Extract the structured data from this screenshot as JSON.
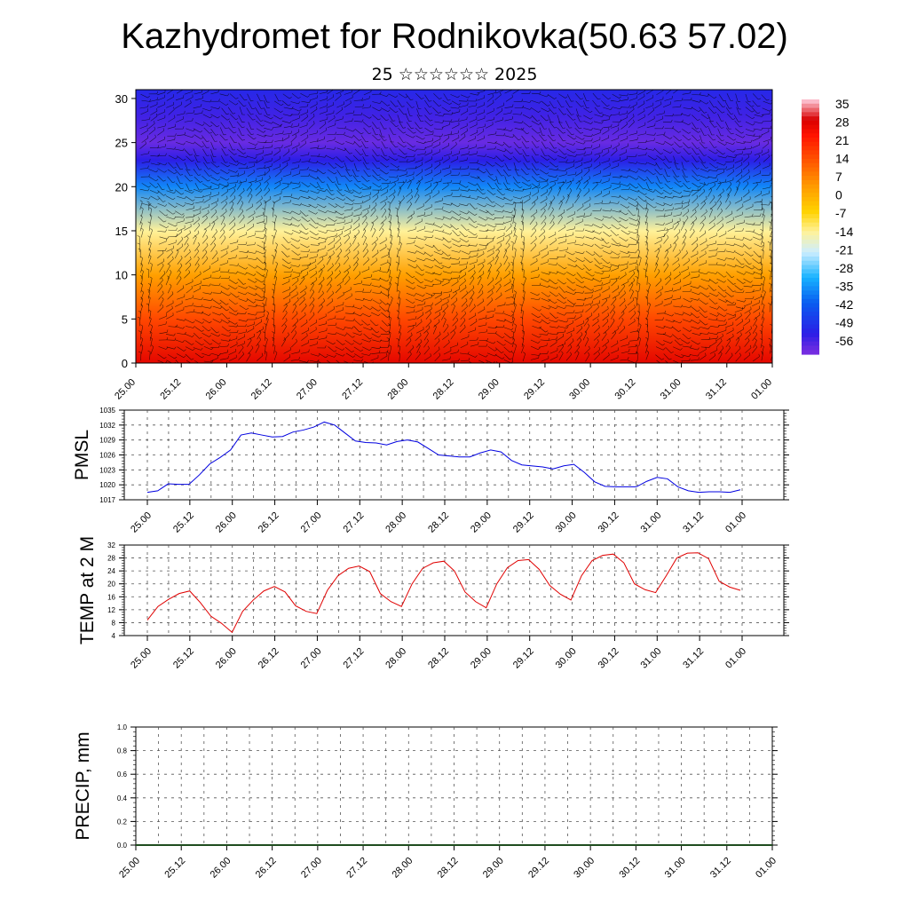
{
  "page": {
    "title": "Kazhydromet for Rodnikovka(50.63 57.02)",
    "subtitle": "25 ☆☆☆☆☆☆ 2025"
  },
  "colors": {
    "pmsl_line": "#0000e0",
    "temp_line": "#e00000",
    "precip_line": "#1f4d1f",
    "grid": "#555555",
    "wind_barbs": "#000000",
    "colorbar": [
      "#ff6bb0",
      "#ff0000",
      "#ff5a00",
      "#ff9a00",
      "#ffd900",
      "#fff59a",
      "#cfefff",
      "#22c3ff",
      "#0070ff",
      "#1b1fe6",
      "#7a2be6"
    ]
  },
  "chart_data": [
    {
      "type": "heatmap",
      "title": "",
      "x_tick_labels": [
        "25.00",
        "25.12",
        "26.00",
        "26.12",
        "27.00",
        "27.12",
        "28.00",
        "28.12",
        "29.00",
        "29.12",
        "30.00",
        "30.12",
        "31.00",
        "31.12",
        "01.00"
      ],
      "y_ticks": [
        0,
        5,
        10,
        15,
        20,
        25,
        30
      ],
      "ylim": [
        0,
        31
      ],
      "colorbar_labels": [
        "35",
        "28",
        "21",
        "14",
        "7",
        "0",
        "-7",
        "-14",
        "-21",
        "-28",
        "-35",
        "-42",
        "-49",
        "-56"
      ],
      "colorbar_range": [
        -60,
        40
      ],
      "temperature_by_level": [
        {
          "level": 0,
          "value": 30
        },
        {
          "level": 5,
          "value": 18
        },
        {
          "level": 10,
          "value": 5
        },
        {
          "level": 15,
          "value": -12
        },
        {
          "level": 20,
          "value": -35
        },
        {
          "level": 23,
          "value": -52
        },
        {
          "level": 25,
          "value": -58
        },
        {
          "level": 28,
          "value": -54
        },
        {
          "level": 31,
          "value": -50
        }
      ],
      "overlay": "wind barbs"
    },
    {
      "type": "line",
      "ylabel": "PMSL",
      "x_tick_labels": [
        "25.00",
        "25.12",
        "26.00",
        "26.12",
        "27.00",
        "27.12",
        "28.00",
        "28.12",
        "29.00",
        "29.12",
        "30.00",
        "30.12",
        "31.00",
        "31.12",
        "01.00"
      ],
      "y_ticks": [
        1017,
        1020,
        1023,
        1026,
        1029,
        1032,
        1035
      ],
      "ylim": [
        1017,
        1035
      ],
      "grid": true,
      "series": [
        {
          "values": [
            1018.5,
            1018.8,
            1020.2,
            1020.1,
            1020.1,
            1022.0,
            1024.2,
            1025.5,
            1027.0,
            1030.0,
            1030.4,
            1030.0,
            1029.6,
            1029.7,
            1030.6,
            1031.0,
            1031.6,
            1032.6,
            1032.0,
            1030.4,
            1028.8,
            1028.5,
            1028.4,
            1028.0,
            1028.7,
            1029.0,
            1028.6,
            1027.3,
            1026.0,
            1025.8,
            1025.6,
            1025.6,
            1026.4,
            1027.0,
            1026.6,
            1024.9,
            1024.0,
            1023.8,
            1023.6,
            1023.2,
            1023.8,
            1024.1,
            1022.5,
            1020.6,
            1019.7,
            1019.6,
            1019.6,
            1019.6,
            1020.7,
            1021.5,
            1021.2,
            1019.6,
            1018.8,
            1018.5,
            1018.6,
            1018.6,
            1018.5,
            1019.0
          ]
        }
      ]
    },
    {
      "type": "line",
      "ylabel": "TEMP at 2 M",
      "x_tick_labels": [
        "25.00",
        "25.12",
        "26.00",
        "26.12",
        "27.00",
        "27.12",
        "28.00",
        "28.12",
        "29.00",
        "29.12",
        "30.00",
        "30.12",
        "31.00",
        "31.12",
        "01.00"
      ],
      "y_ticks": [
        4,
        8,
        12,
        16,
        20,
        24,
        28,
        32
      ],
      "ylim": [
        4,
        32
      ],
      "grid": true,
      "series": [
        {
          "values": [
            8.8,
            13.0,
            15.2,
            17.0,
            17.8,
            14.2,
            10.0,
            7.8,
            5.0,
            11.5,
            15.0,
            17.8,
            19.2,
            17.5,
            13.2,
            11.5,
            10.8,
            18.0,
            22.5,
            24.8,
            25.5,
            23.8,
            17.0,
            14.5,
            13.0,
            20.0,
            24.8,
            26.5,
            27.0,
            24.0,
            17.5,
            14.5,
            12.6,
            20.0,
            25.0,
            27.2,
            27.5,
            24.5,
            19.5,
            16.8,
            15.0,
            22.5,
            27.2,
            28.8,
            29.2,
            26.5,
            20.0,
            18.2,
            17.3,
            22.5,
            28.0,
            29.5,
            29.6,
            27.8,
            20.8,
            19.0,
            18.0
          ]
        }
      ]
    },
    {
      "type": "line",
      "ylabel": "PRECIP, mm",
      "x_tick_labels": [
        "25.00",
        "25.12",
        "26.00",
        "26.12",
        "27.00",
        "27.12",
        "28.00",
        "28.12",
        "29.00",
        "29.12",
        "30.00",
        "30.12",
        "31.00",
        "31.12",
        "01.00"
      ],
      "y_ticks": [
        0.0,
        0.2,
        0.4,
        0.6,
        0.8,
        1.0
      ],
      "y_tick_labels": [
        "0.0",
        "0.2",
        "0.4",
        "0.6",
        "0.8",
        "1.0"
      ],
      "ylim": [
        0,
        1
      ],
      "grid": true,
      "series": [
        {
          "values": [
            0,
            0,
            0,
            0,
            0,
            0,
            0,
            0,
            0,
            0,
            0,
            0,
            0,
            0,
            0,
            0,
            0,
            0,
            0,
            0,
            0,
            0,
            0,
            0,
            0,
            0,
            0,
            0,
            0,
            0,
            0,
            0,
            0,
            0,
            0,
            0,
            0,
            0,
            0,
            0,
            0,
            0,
            0,
            0,
            0,
            0,
            0,
            0,
            0,
            0,
            0,
            0,
            0,
            0,
            0,
            0,
            0
          ]
        }
      ]
    }
  ]
}
